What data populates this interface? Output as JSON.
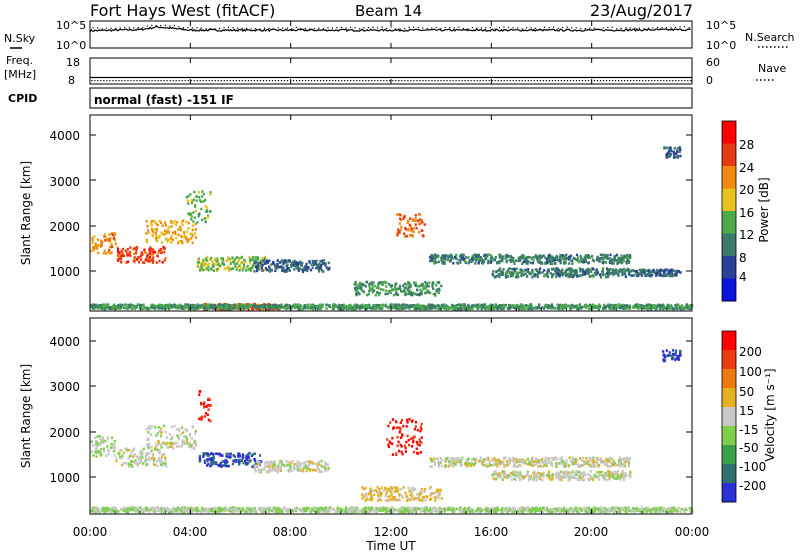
{
  "header": {
    "station": "Fort Hays West (fitACF)",
    "beam": "Beam 14",
    "date": "23/Aug/2017"
  },
  "time_axis": {
    "label": "Time UT",
    "ticks": [
      "00:00",
      "04:00",
      "08:00",
      "12:00",
      "16:00",
      "20:00",
      "00:00"
    ]
  },
  "noise_panel": {
    "left_label": "N.Sky",
    "left_ticks": [
      "10^5",
      "10^0"
    ],
    "right_label": "N.Search",
    "right_ticks": [
      "10^5",
      "10^0"
    ]
  },
  "freq_panel": {
    "left_label_1": "Freq.",
    "left_label_2": "[MHz]",
    "left_ticks": [
      "18",
      "8"
    ],
    "right_label": "Nave",
    "right_ticks": [
      "60",
      "0"
    ]
  },
  "cpid_panel": {
    "label": "CPID",
    "mode": "normal (fast) -151 IF"
  },
  "range_axis": {
    "label": "Slant Range [km]",
    "ticks": [
      "4000",
      "3000",
      "2000",
      "1000"
    ]
  },
  "power_colorbar": {
    "label": "Power [dB]",
    "ticks": [
      "28",
      "24",
      "20",
      "16",
      "12",
      "8",
      "4"
    ],
    "colors": [
      "#0a12dd",
      "#2a3f97",
      "#3b7a6a",
      "#4caa4c",
      "#e8c21a",
      "#f08a10",
      "#e63a12",
      "#ff0000"
    ]
  },
  "velocity_colorbar": {
    "label": "Velocity [m s⁻¹]",
    "ticks": [
      "200",
      "100",
      "50",
      "15",
      "-15",
      "-50",
      "-100",
      "-200"
    ],
    "colors": [
      "#2a2fd6",
      "#2f6f6c",
      "#3aa04a",
      "#7ed04a",
      "#c8c8c8",
      "#e6b020",
      "#f07a10",
      "#ee3c12",
      "#ff0000"
    ]
  },
  "chart_data": [
    {
      "type": "line",
      "title": "N.Sky / N.Search",
      "x": [
        0,
        2,
        2.7,
        4,
        8,
        12,
        16,
        20,
        24
      ],
      "y_log10": [
        3.2,
        3.4,
        3.9,
        3.3,
        3.3,
        3.3,
        3.3,
        3.3,
        3.4
      ],
      "xlim": [
        0,
        24
      ],
      "ylim_log10": [
        0,
        5
      ]
    },
    {
      "type": "line",
      "title": "Freq. / Nave",
      "x": [
        0,
        24
      ],
      "y": [
        10.5,
        10.5
      ],
      "ylim": [
        8,
        18
      ]
    },
    {
      "type": "heatmap",
      "title": "Power [dB]",
      "xlabel": "Time UT",
      "ylabel": "Slant Range [km]",
      "xlim": [
        0,
        24
      ],
      "ylim": [
        180,
        4500
      ],
      "zlim": [
        0,
        32
      ],
      "regions": [
        {
          "t0": 0.0,
          "t1": 1.0,
          "r_center": 1700,
          "r_width": 450,
          "level": 22
        },
        {
          "t0": 1.0,
          "t1": 3.0,
          "r_center": 1450,
          "r_width": 350,
          "level": 26
        },
        {
          "t0": 2.2,
          "t1": 4.2,
          "r_center": 1950,
          "r_width": 500,
          "level": 20
        },
        {
          "t0": 3.8,
          "t1": 4.8,
          "r_center": 2500,
          "r_width": 700,
          "level": 14
        },
        {
          "t0": 4.2,
          "t1": 7.0,
          "r_center": 1250,
          "r_width": 300,
          "level": 15
        },
        {
          "t0": 6.5,
          "t1": 9.5,
          "r_center": 1200,
          "r_width": 250,
          "level": 8
        },
        {
          "t0": 10.5,
          "t1": 14.0,
          "r_center": 700,
          "r_width": 300,
          "level": 12
        },
        {
          "t0": 12.2,
          "t1": 13.3,
          "r_center": 2100,
          "r_width": 500,
          "level": 24
        },
        {
          "t0": 13.5,
          "t1": 21.5,
          "r_center": 1350,
          "r_width": 200,
          "level": 10
        },
        {
          "t0": 16.0,
          "t1": 21.5,
          "r_center": 1050,
          "r_width": 200,
          "level": 10
        },
        {
          "t0": 21.5,
          "t1": 23.5,
          "r_center": 1050,
          "r_width": 150,
          "level": 9
        },
        {
          "t0": 22.8,
          "t1": 23.5,
          "r_center": 3700,
          "r_width": 250,
          "level": 8
        },
        {
          "t0": 4.5,
          "t1": 7.5,
          "r_center": 300,
          "r_width": 120,
          "level": 26
        },
        {
          "t0": 0.0,
          "t1": 24.0,
          "r_center": 300,
          "r_width": 100,
          "level": 12
        }
      ]
    },
    {
      "type": "heatmap",
      "title": "Velocity [m s⁻¹]",
      "xlabel": "Time UT",
      "ylabel": "Slant Range [km]",
      "xlim": [
        0,
        24
      ],
      "ylim": [
        180,
        4500
      ],
      "zlim": [
        -250,
        250
      ],
      "regions": [
        {
          "t0": 0.0,
          "t1": 1.0,
          "r_center": 1700,
          "r_width": 450,
          "level": -20
        },
        {
          "t0": 1.0,
          "t1": 3.0,
          "r_center": 1450,
          "r_width": 400,
          "level": 0
        },
        {
          "t0": 2.2,
          "t1": 4.2,
          "r_center": 1900,
          "r_width": 500,
          "level": 0
        },
        {
          "t0": 4.3,
          "t1": 4.8,
          "r_center": 2600,
          "r_width": 700,
          "level": 210
        },
        {
          "t0": 4.3,
          "t1": 6.8,
          "r_center": 1400,
          "r_width": 300,
          "level": -210
        },
        {
          "t0": 6.5,
          "t1": 9.5,
          "r_center": 1250,
          "r_width": 250,
          "level": 0
        },
        {
          "t0": 10.8,
          "t1": 14.0,
          "r_center": 650,
          "r_width": 300,
          "level": 40
        },
        {
          "t0": 11.8,
          "t1": 13.2,
          "r_center": 1900,
          "r_width": 800,
          "level": 210
        },
        {
          "t0": 13.5,
          "t1": 21.5,
          "r_center": 1350,
          "r_width": 200,
          "level": 0
        },
        {
          "t0": 16.0,
          "t1": 21.5,
          "r_center": 1050,
          "r_width": 200,
          "level": 0
        },
        {
          "t0": 22.8,
          "t1": 23.5,
          "r_center": 3700,
          "r_width": 250,
          "level": -210
        },
        {
          "t0": 0.0,
          "t1": 24.0,
          "r_center": 300,
          "r_width": 100,
          "level": -30
        }
      ]
    }
  ]
}
